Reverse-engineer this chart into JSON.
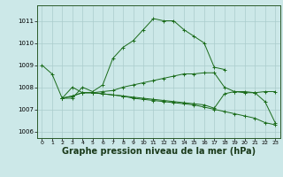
{
  "bg_color": "#cce8e8",
  "grid_color": "#aacccc",
  "line_color": "#1a6b1a",
  "marker_color": "#1a6b1a",
  "xlabel": "Graphe pression niveau de la mer (hPa)",
  "xlabel_fontsize": 7,
  "xticks": [
    0,
    1,
    2,
    3,
    4,
    5,
    6,
    7,
    8,
    9,
    10,
    11,
    12,
    13,
    14,
    15,
    16,
    17,
    18,
    19,
    20,
    21,
    22,
    23
  ],
  "yticks": [
    1006,
    1007,
    1008,
    1009,
    1010,
    1011
  ],
  "ylim": [
    1005.7,
    1011.7
  ],
  "xlim": [
    -0.5,
    23.5
  ],
  "lines": [
    {
      "x": [
        0,
        1,
        2,
        3,
        4,
        5,
        6,
        7,
        8,
        9,
        10,
        11,
        12,
        13,
        14,
        15,
        16,
        17,
        18
      ],
      "y": [
        1009.0,
        1008.6,
        1007.5,
        1007.5,
        1008.0,
        1007.8,
        1008.1,
        1009.3,
        1009.8,
        1010.1,
        1010.6,
        1011.1,
        1011.0,
        1011.0,
        1010.6,
        1010.3,
        1010.0,
        1008.9,
        1008.8
      ]
    },
    {
      "x": [
        2,
        3,
        4,
        5,
        6,
        7,
        8,
        9,
        10,
        11,
        12,
        13,
        14,
        15,
        16,
        17,
        18,
        19,
        20,
        21,
        22,
        23
      ],
      "y": [
        1007.5,
        1008.0,
        1007.75,
        1007.75,
        1007.8,
        1007.85,
        1008.0,
        1008.1,
        1008.2,
        1008.3,
        1008.4,
        1008.5,
        1008.6,
        1008.6,
        1008.65,
        1008.65,
        1008.0,
        1007.8,
        1007.75,
        1007.75,
        1007.8,
        1007.8
      ]
    },
    {
      "x": [
        2,
        3,
        4,
        5,
        6,
        7,
        8,
        9,
        10,
        11,
        12,
        13,
        14,
        15,
        16,
        17,
        18,
        19,
        20,
        21,
        22,
        23
      ],
      "y": [
        1007.5,
        1007.6,
        1007.75,
        1007.75,
        1007.7,
        1007.65,
        1007.6,
        1007.5,
        1007.45,
        1007.4,
        1007.35,
        1007.3,
        1007.25,
        1007.2,
        1007.1,
        1007.0,
        1006.9,
        1006.8,
        1006.7,
        1006.6,
        1006.4,
        1006.3
      ]
    },
    {
      "x": [
        2,
        3,
        4,
        5,
        6,
        7,
        8,
        9,
        10,
        11,
        12,
        13,
        14,
        15,
        16,
        17,
        18,
        19,
        20,
        21,
        22,
        23
      ],
      "y": [
        1007.5,
        1007.6,
        1007.75,
        1007.75,
        1007.7,
        1007.65,
        1007.6,
        1007.55,
        1007.5,
        1007.45,
        1007.4,
        1007.35,
        1007.3,
        1007.25,
        1007.2,
        1007.05,
        1007.7,
        1007.8,
        1007.8,
        1007.75,
        1007.35,
        1006.4
      ]
    }
  ]
}
